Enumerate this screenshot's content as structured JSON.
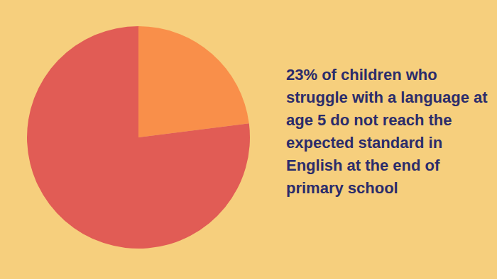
{
  "chart_data": {
    "type": "pie",
    "title": "23% of children who struggle with a language at age 5 do not reach the expected standard in English at the end of primary school",
    "values": [
      23,
      77
    ],
    "colors": [
      "#f98f4a",
      "#e15c55"
    ],
    "data_labels": false
  }
}
